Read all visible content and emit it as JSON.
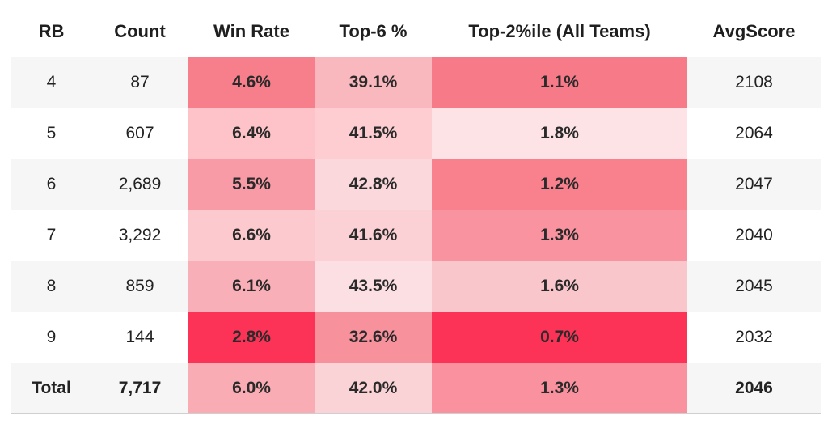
{
  "chart_data": {
    "type": "table",
    "columns": [
      "RB",
      "Count",
      "Win Rate",
      "Top-6 %",
      "Top-2%ile (All Teams)",
      "AvgScore"
    ],
    "rows": [
      {
        "rb": "4",
        "count": "87",
        "win_rate": "4.6%",
        "top6": "39.1%",
        "top2": "1.1%",
        "avg": "2108",
        "colors": {
          "win_rate": "#f77f8c",
          "top6": "#f9b7be",
          "top2": "#f77a88"
        }
      },
      {
        "rb": "5",
        "count": "607",
        "win_rate": "6.4%",
        "top6": "41.5%",
        "top2": "1.8%",
        "avg": "2064",
        "colors": {
          "win_rate": "#fdc3c9",
          "top6": "#fdcdd2",
          "top2": "#fde3e6"
        }
      },
      {
        "rb": "6",
        "count": "2,689",
        "win_rate": "5.5%",
        "top6": "42.8%",
        "top2": "1.2%",
        "avg": "2047",
        "colors": {
          "win_rate": "#f99ba6",
          "top6": "#fbd8dc",
          "top2": "#f8818d"
        }
      },
      {
        "rb": "7",
        "count": "3,292",
        "win_rate": "6.6%",
        "top6": "41.6%",
        "top2": "1.3%",
        "avg": "2040",
        "colors": {
          "win_rate": "#fcc9ce",
          "top6": "#fcd1d5",
          "top2": "#fa93a0"
        }
      },
      {
        "rb": "8",
        "count": "859",
        "win_rate": "6.1%",
        "top6": "43.5%",
        "top2": "1.6%",
        "avg": "2045",
        "colors": {
          "win_rate": "#f9afb7",
          "top6": "#fcdfe2",
          "top2": "#f9c6cb"
        }
      },
      {
        "rb": "9",
        "count": "144",
        "win_rate": "2.8%",
        "top6": "32.6%",
        "top2": "0.7%",
        "avg": "2032",
        "colors": {
          "win_rate": "#fc3356",
          "top6": "#f7929d",
          "top2": "#fc3356"
        }
      }
    ],
    "total": {
      "rb": "Total",
      "count": "7,717",
      "win_rate": "6.0%",
      "top6": "42.0%",
      "top2": "1.3%",
      "avg": "2046",
      "colors": {
        "win_rate": "#f9acb4",
        "top6": "#fad3d7",
        "top2": "#f9919e"
      }
    }
  }
}
